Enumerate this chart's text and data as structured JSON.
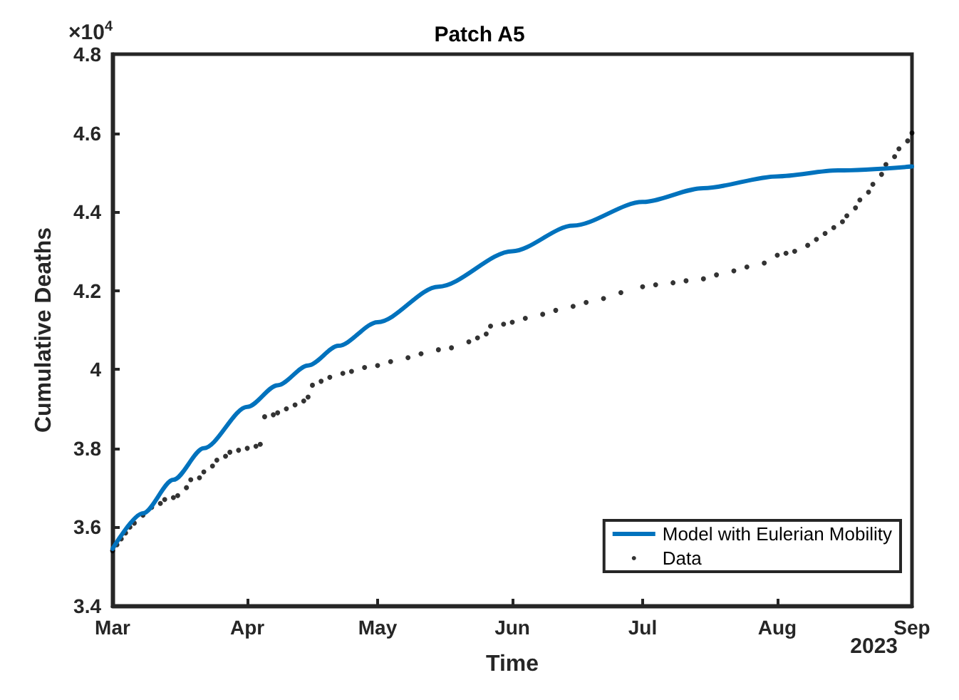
{
  "chart_data": {
    "type": "line",
    "title": "Patch A5",
    "xlabel": "Time",
    "ylabel": "Cumulative Deaths",
    "annotations": [
      "×10$^{4}$",
      "2023"
    ],
    "xlim": [
      "2023-03-01",
      "2023-09-01"
    ],
    "xticks": [
      {
        "value": "2023-03-01",
        "label": "Mar"
      },
      {
        "value": "2023-04-01",
        "label": "Apr"
      },
      {
        "value": "2023-05-01",
        "label": "May"
      },
      {
        "value": "2023-06-01",
        "label": "Jun"
      },
      {
        "value": "2023-07-01",
        "label": "Jul"
      },
      {
        "value": "2023-08-01",
        "label": "Aug"
      },
      {
        "value": "2023-09-01",
        "label": "Sep"
      }
    ],
    "ylim": [
      3.4,
      4.8
    ],
    "yticks": [
      3.4,
      3.6,
      3.8,
      4,
      4.2,
      4.4,
      4.6,
      4.8
    ],
    "grid": false,
    "legend": "bottom right",
    "series": [
      {
        "name": "Model with Eulerian Mobility",
        "color": "#0072bd",
        "marker": "none",
        "line_style": "solid",
        "x": [
          "2023-03-01",
          "2023-03-08",
          "2023-03-15",
          "2023-03-22",
          "2023-04-01",
          "2023-04-08",
          "2023-04-15",
          "2023-04-22",
          "2023-05-01",
          "2023-05-15",
          "2023-06-01",
          "2023-06-15",
          "2023-07-01",
          "2023-07-15",
          "2023-08-01",
          "2023-08-15",
          "2023-09-01"
        ],
        "values": [
          3.545,
          3.635,
          3.72,
          3.8,
          3.905,
          3.96,
          4.01,
          4.06,
          4.12,
          4.21,
          4.3,
          4.365,
          4.425,
          4.46,
          4.49,
          4.505,
          4.515
        ]
      },
      {
        "name": "Data",
        "type": "scatter",
        "color": "#000000",
        "marker": "circle",
        "x": [
          "2023-03-01",
          "2023-03-02",
          "2023-03-03",
          "2023-03-04",
          "2023-03-05",
          "2023-03-06",
          "2023-03-08",
          "2023-03-10",
          "2023-03-12",
          "2023-03-13",
          "2023-03-15",
          "2023-03-16",
          "2023-03-18",
          "2023-03-19",
          "2023-03-21",
          "2023-03-22",
          "2023-03-24",
          "2023-03-25",
          "2023-03-27",
          "2023-03-28",
          "2023-03-30",
          "2023-04-01",
          "2023-04-03",
          "2023-04-04",
          "2023-04-05",
          "2023-04-07",
          "2023-04-08",
          "2023-04-10",
          "2023-04-12",
          "2023-04-14",
          "2023-04-15",
          "2023-04-16",
          "2023-04-18",
          "2023-04-20",
          "2023-04-23",
          "2023-04-25",
          "2023-04-28",
          "2023-05-01",
          "2023-05-04",
          "2023-05-08",
          "2023-05-11",
          "2023-05-15",
          "2023-05-18",
          "2023-05-22",
          "2023-05-24",
          "2023-05-26",
          "2023-05-27",
          "2023-05-30",
          "2023-06-01",
          "2023-06-04",
          "2023-06-08",
          "2023-06-11",
          "2023-06-15",
          "2023-06-18",
          "2023-06-22",
          "2023-06-26",
          "2023-07-01",
          "2023-07-04",
          "2023-07-08",
          "2023-07-11",
          "2023-07-15",
          "2023-07-18",
          "2023-07-22",
          "2023-07-25",
          "2023-07-29",
          "2023-08-01",
          "2023-08-03",
          "2023-08-05",
          "2023-08-08",
          "2023-08-10",
          "2023-08-12",
          "2023-08-14",
          "2023-08-16",
          "2023-08-17",
          "2023-08-19",
          "2023-08-20",
          "2023-08-22",
          "2023-08-23",
          "2023-08-25",
          "2023-08-26",
          "2023-08-28",
          "2023-08-29",
          "2023-08-31",
          "2023-09-01"
        ],
        "values": [
          3.54,
          3.555,
          3.57,
          3.585,
          3.6,
          3.61,
          3.63,
          3.65,
          3.66,
          3.67,
          3.675,
          3.68,
          3.7,
          3.72,
          3.725,
          3.74,
          3.755,
          3.77,
          3.78,
          3.79,
          3.795,
          3.8,
          3.805,
          3.81,
          3.88,
          3.885,
          3.89,
          3.9,
          3.91,
          3.92,
          3.93,
          3.96,
          3.97,
          3.98,
          3.99,
          3.995,
          4.005,
          4.01,
          4.02,
          4.03,
          4.04,
          4.05,
          4.055,
          4.07,
          4.08,
          4.09,
          4.11,
          4.115,
          4.12,
          4.13,
          4.14,
          4.15,
          4.16,
          4.17,
          4.18,
          4.195,
          4.21,
          4.215,
          4.22,
          4.225,
          4.23,
          4.24,
          4.25,
          4.26,
          4.27,
          4.29,
          4.295,
          4.3,
          4.315,
          4.33,
          4.345,
          4.36,
          4.375,
          4.39,
          4.41,
          4.43,
          4.45,
          4.47,
          4.495,
          4.52,
          4.54,
          4.56,
          4.58,
          4.6
        ]
      }
    ]
  }
}
